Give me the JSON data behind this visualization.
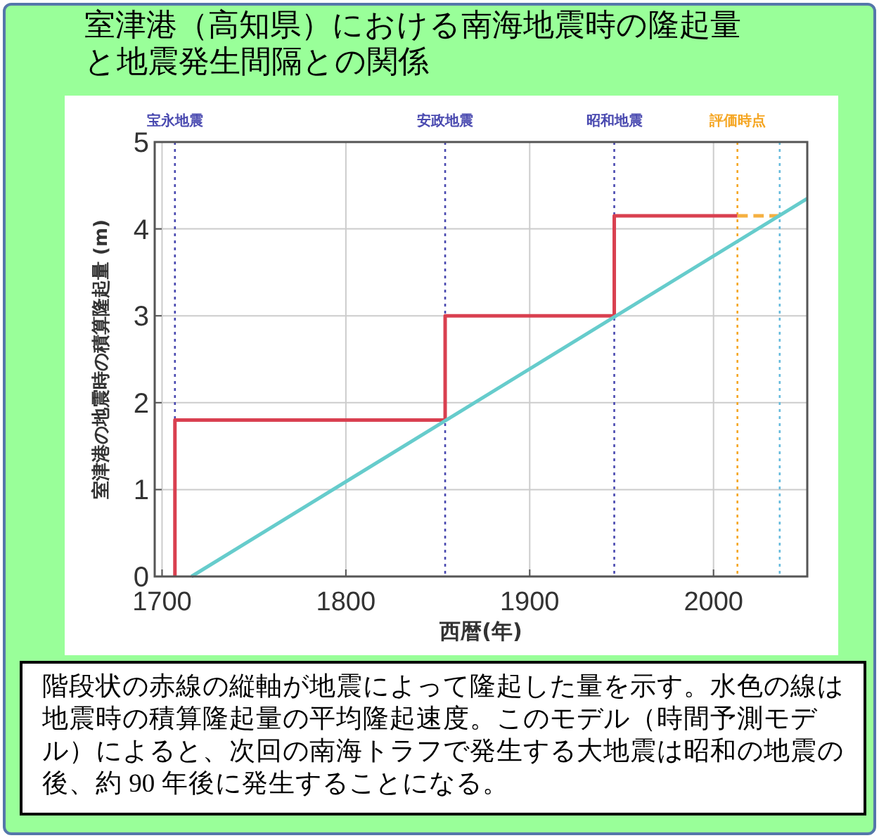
{
  "chart_data": {
    "type": "line",
    "title": "室津港（高知県）における南海地震時の隆起量と地震発生間隔との関係",
    "xlabel": "西暦(年)",
    "ylabel": "室津港の地震時の積算隆起量 (m)",
    "xlim": [
      1696,
      2051
    ],
    "ylim": [
      0,
      5
    ],
    "xticks": [
      1700,
      1800,
      1900,
      2000
    ],
    "yticks": [
      0,
      1,
      2,
      3,
      4,
      5
    ],
    "grid": true,
    "marker": "none",
    "series": [
      {
        "color": "#d94050",
        "x": [
          1707,
          1707,
          1854,
          1854,
          1946,
          1946,
          2013
        ],
        "values": [
          0,
          1.8,
          1.8,
          3.0,
          3.0,
          4.15,
          4.15
        ],
        "line_style": "solid"
      },
      {
        "color": "#f5b040",
        "x": [
          2013,
          2036
        ],
        "values": [
          4.15,
          4.15
        ],
        "line_style": "dashed"
      },
      {
        "color": "#66cccc",
        "x": [
          1716,
          2051
        ],
        "values": [
          0,
          4.35
        ],
        "line_style": "solid"
      }
    ],
    "ref_lines": [
      {
        "axis": "x",
        "value": 1707,
        "label": "宝永地震",
        "color": "#4a4ab0",
        "line_style": "dotted"
      },
      {
        "axis": "x",
        "value": 1854,
        "label": "安政地震",
        "color": "#4a4ab0",
        "line_style": "dotted"
      },
      {
        "axis": "x",
        "value": 1946,
        "label": "昭和地震",
        "color": "#4a4ab0",
        "line_style": "dotted"
      },
      {
        "axis": "x",
        "value": 2013,
        "label": "評価時点",
        "color": "#f5a623",
        "line_style": "dotted"
      },
      {
        "axis": "x",
        "value": 2036,
        "label": null,
        "color": "#66bbdd",
        "line_style": "dotted"
      }
    ],
    "annotations": [
      "階段状の赤線の縦軸が地震によって隆起した量を示す。水色の線は地震時の積算隆起量の平均隆起速度。このモデル（時間予測モデル）によると、次回の南海トラフで発生する大地震は昭和の地震の後、約 90 年後に発生することになる。"
    ]
  }
}
